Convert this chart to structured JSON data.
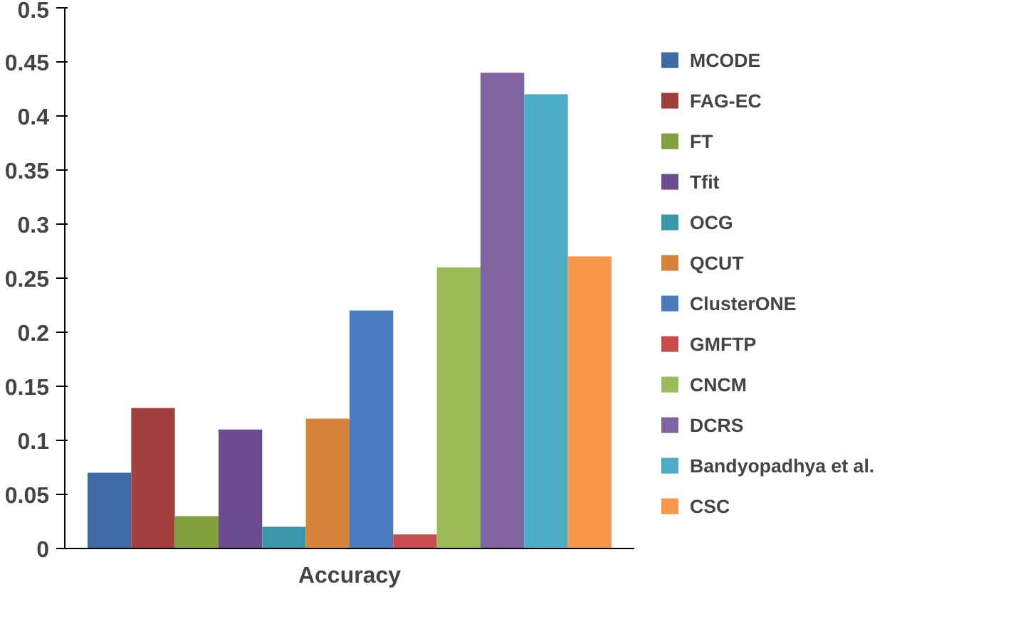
{
  "chart_data": {
    "type": "bar",
    "categories": [
      "Accuracy"
    ],
    "series": [
      {
        "name": "MCODE",
        "color": "#3e6aa5",
        "values": [
          0.07
        ]
      },
      {
        "name": "FAG-EC",
        "color": "#a13f3d",
        "values": [
          0.13
        ]
      },
      {
        "name": "FT",
        "color": "#82a03d",
        "values": [
          0.03
        ]
      },
      {
        "name": "Tfit",
        "color": "#6b4c8e",
        "values": [
          0.11
        ]
      },
      {
        "name": "OCG",
        "color": "#3a96a9",
        "values": [
          0.02
        ]
      },
      {
        "name": "QCUT",
        "color": "#d5843a",
        "values": [
          0.12
        ]
      },
      {
        "name": "ClusterONE",
        "color": "#4a7cc0",
        "values": [
          0.22
        ]
      },
      {
        "name": "GMFTP",
        "color": "#c84c4c",
        "values": [
          0.013
        ]
      },
      {
        "name": "CNCM",
        "color": "#9bbb59",
        "values": [
          0.26
        ]
      },
      {
        "name": "DCRS",
        "color": "#8064a2",
        "values": [
          0.44
        ]
      },
      {
        "name": "Bandyopadhya et al.",
        "color": "#4bacc6",
        "values": [
          0.42
        ]
      },
      {
        "name": "CSC",
        "color": "#f79646",
        "values": [
          0.27
        ]
      }
    ],
    "ylim": [
      0,
      0.5
    ],
    "yticks": [
      0,
      0.05,
      0.1,
      0.15,
      0.2,
      0.25,
      0.3,
      0.35,
      0.4,
      0.45,
      0.5
    ],
    "grid": false,
    "legend": "right"
  }
}
